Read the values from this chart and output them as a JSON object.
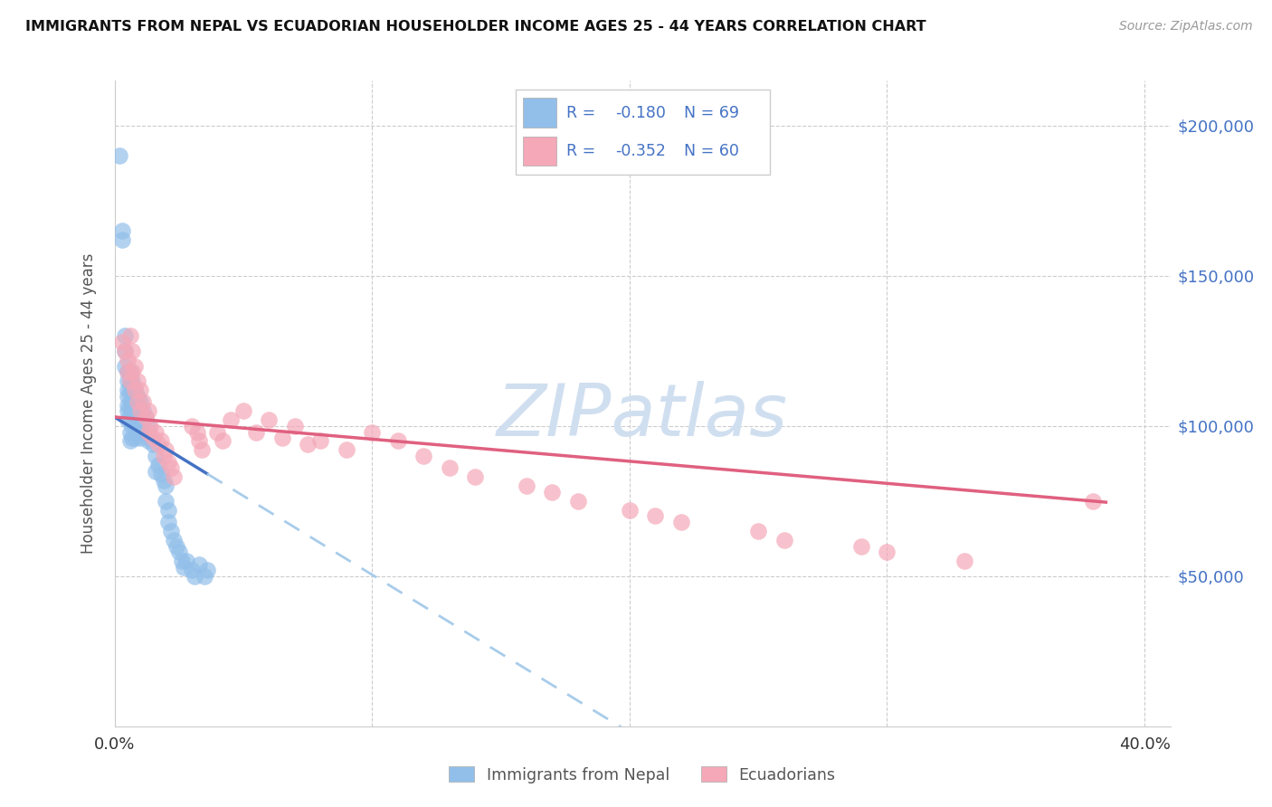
{
  "title": "IMMIGRANTS FROM NEPAL VS ECUADORIAN HOUSEHOLDER INCOME AGES 25 - 44 YEARS CORRELATION CHART",
  "source": "Source: ZipAtlas.com",
  "ylabel": "Householder Income Ages 25 - 44 years",
  "yaxis_values": [
    50000,
    100000,
    150000,
    200000
  ],
  "yaxis_labels": [
    "$50,000",
    "$100,000",
    "$150,000",
    "$200,000"
  ],
  "ylim": [
    0,
    215000
  ],
  "xlim": [
    0.0,
    0.41
  ],
  "legend1_r": "-0.180",
  "legend1_n": "69",
  "legend2_r": "-0.352",
  "legend2_n": "60",
  "nepal_color": "#92BFEA",
  "ecuador_color": "#F4A8B8",
  "nepal_line_color": "#4472C4",
  "ecuador_line_color": "#E06080",
  "nepal_dashed_color": "#A8CCEA",
  "right_label_color": "#4472C4",
  "label1": "Immigrants from Nepal",
  "label2": "Ecuadorians",
  "nepal_x": [
    0.002,
    0.003,
    0.003,
    0.004,
    0.004,
    0.004,
    0.005,
    0.005,
    0.005,
    0.005,
    0.005,
    0.005,
    0.005,
    0.006,
    0.006,
    0.006,
    0.006,
    0.006,
    0.006,
    0.006,
    0.006,
    0.007,
    0.007,
    0.007,
    0.007,
    0.007,
    0.007,
    0.008,
    0.008,
    0.008,
    0.008,
    0.008,
    0.009,
    0.009,
    0.009,
    0.009,
    0.01,
    0.01,
    0.01,
    0.01,
    0.011,
    0.011,
    0.012,
    0.012,
    0.013,
    0.013,
    0.014,
    0.015,
    0.016,
    0.016,
    0.017,
    0.018,
    0.019,
    0.02,
    0.02,
    0.021,
    0.021,
    0.022,
    0.023,
    0.024,
    0.025,
    0.026,
    0.027,
    0.028,
    0.03,
    0.031,
    0.033,
    0.035,
    0.036
  ],
  "nepal_y": [
    190000,
    165000,
    162000,
    130000,
    125000,
    120000,
    118000,
    115000,
    112000,
    110000,
    107000,
    105000,
    102000,
    118000,
    115000,
    112000,
    108000,
    105000,
    102000,
    98000,
    95000,
    115000,
    112000,
    108000,
    105000,
    100000,
    96000,
    112000,
    108000,
    104000,
    100000,
    96000,
    110000,
    106000,
    102000,
    98000,
    108000,
    104000,
    100000,
    96000,
    105000,
    100000,
    103000,
    98000,
    100000,
    95000,
    96000,
    94000,
    90000,
    85000,
    87000,
    84000,
    82000,
    80000,
    75000,
    72000,
    68000,
    65000,
    62000,
    60000,
    58000,
    55000,
    53000,
    55000,
    52000,
    50000,
    54000,
    50000,
    52000
  ],
  "ecuador_x": [
    0.003,
    0.004,
    0.005,
    0.005,
    0.006,
    0.006,
    0.007,
    0.007,
    0.008,
    0.008,
    0.009,
    0.009,
    0.01,
    0.01,
    0.011,
    0.012,
    0.013,
    0.013,
    0.014,
    0.015,
    0.016,
    0.017,
    0.018,
    0.019,
    0.02,
    0.021,
    0.022,
    0.023,
    0.03,
    0.032,
    0.033,
    0.034,
    0.04,
    0.042,
    0.045,
    0.05,
    0.055,
    0.06,
    0.065,
    0.07,
    0.075,
    0.08,
    0.09,
    0.1,
    0.11,
    0.12,
    0.13,
    0.14,
    0.16,
    0.17,
    0.18,
    0.2,
    0.21,
    0.22,
    0.25,
    0.26,
    0.29,
    0.3,
    0.33,
    0.38
  ],
  "ecuador_y": [
    128000,
    125000,
    122000,
    118000,
    130000,
    115000,
    125000,
    118000,
    120000,
    112000,
    115000,
    108000,
    112000,
    105000,
    108000,
    103000,
    105000,
    98000,
    100000,
    96000,
    98000,
    94000,
    95000,
    90000,
    92000,
    88000,
    86000,
    83000,
    100000,
    98000,
    95000,
    92000,
    98000,
    95000,
    102000,
    105000,
    98000,
    102000,
    96000,
    100000,
    94000,
    95000,
    92000,
    98000,
    95000,
    90000,
    86000,
    83000,
    80000,
    78000,
    75000,
    72000,
    70000,
    68000,
    65000,
    62000,
    60000,
    58000,
    55000,
    75000
  ]
}
